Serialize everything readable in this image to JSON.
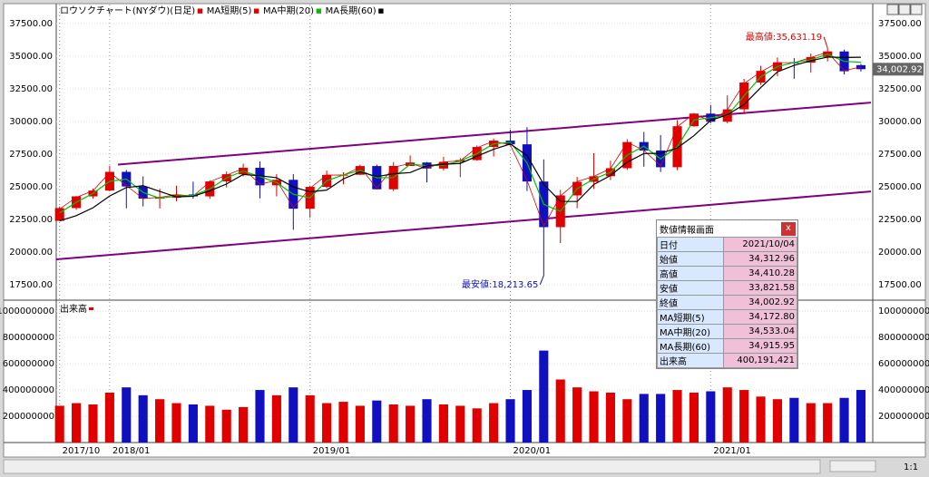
{
  "chart_data": {
    "type": "candlestick",
    "title": "ロウソクチャート(NYダウ)(日足)",
    "up_color": "#e00000",
    "down_color": "#1010c0",
    "categories": [
      "2017/10",
      null,
      null,
      "2018/01",
      null,
      null,
      null,
      null,
      null,
      null,
      null,
      null,
      null,
      null,
      null,
      "2019/01",
      null,
      null,
      null,
      null,
      null,
      null,
      null,
      null,
      null,
      null,
      null,
      "2020/01",
      null,
      null,
      null,
      null,
      null,
      null,
      null,
      null,
      null,
      null,
      null,
      "2021/01",
      null,
      null,
      null,
      null,
      null,
      null,
      null,
      null,
      null
    ],
    "open": [
      22400,
      23377,
      24272,
      24719,
      26149,
      25029,
      24103,
      24163,
      24416,
      24271,
      25415,
      25965,
      26458,
      25116,
      25538,
      23327,
      24999,
      25916,
      25929,
      26593,
      24815,
      26600,
      26864,
      26403,
      26917,
      27046,
      28051,
      28538,
      28256,
      25409,
      21917,
      24346,
      25383,
      25813,
      26428,
      28430,
      27782,
      26502,
      29639,
      30606,
      29983,
      30932,
      32982,
      33875,
      34529,
      34503,
      34935,
      35361,
      34312.96
    ],
    "high": [
      23500,
      24300,
      24880,
      26616,
      26300,
      25800,
      24860,
      25090,
      25400,
      25500,
      26170,
      26770,
      26950,
      25980,
      25980,
      25100,
      26240,
      26110,
      26700,
      26700,
      26900,
      27400,
      26900,
      27300,
      27200,
      28170,
      28700,
      29370,
      29570,
      27100,
      24760,
      25760,
      27580,
      27000,
      28650,
      29200,
      28960,
      30100,
      30640,
      31270,
      32000,
      33260,
      34260,
      34900,
      34850,
      35200,
      35631.19,
      35500,
      34410.28
    ],
    "low": [
      22400,
      23240,
      24100,
      24660,
      23360,
      23500,
      23340,
      23900,
      24100,
      24080,
      24960,
      25800,
      24120,
      24270,
      21713,
      22640,
      24880,
      25200,
      25900,
      24800,
      24680,
      26600,
      25340,
      26250,
      25740,
      27000,
      27320,
      28170,
      24680,
      18213.65,
      20700,
      23360,
      24840,
      25520,
      26290,
      26540,
      26140,
      26270,
      29600,
      29860,
      29860,
      30550,
      32800,
      33470,
      33270,
      33740,
      34600,
      33600,
      33821.58
    ],
    "close": [
      23377,
      24272,
      24719,
      26149,
      25029,
      24103,
      24163,
      24416,
      24271,
      25415,
      25965,
      26458,
      25116,
      25538,
      23327,
      24999,
      25916,
      25929,
      26593,
      24815,
      26600,
      26864,
      26403,
      26917,
      27046,
      28051,
      28538,
      28256,
      25409,
      21917,
      24346,
      25383,
      25813,
      26428,
      28430,
      27782,
      26502,
      29639,
      30606,
      29983,
      30932,
      32982,
      33875,
      34529,
      34503,
      34935,
      35361,
      33844,
      34002.92
    ],
    "series": [
      {
        "name": "MA短期(5)",
        "color": "#e00000",
        "values": [
          23300,
          24200,
          24700,
          26100,
          25100,
          24100,
          24200,
          24400,
          24300,
          25400,
          25900,
          26400,
          25200,
          25500,
          23400,
          24900,
          25900,
          25900,
          26500,
          24900,
          26500,
          26800,
          26400,
          26900,
          27000,
          28000,
          28500,
          28200,
          25500,
          22000,
          24300,
          25400,
          25800,
          26400,
          28400,
          27800,
          26600,
          29600,
          30600,
          30000,
          30900,
          32900,
          33800,
          34500,
          34500,
          34900,
          35300,
          33900,
          34172.8
        ]
      },
      {
        "name": "MA中期(20)",
        "color": "#00c000",
        "values": [
          23000,
          23820,
          24500,
          25430,
          25590,
          24570,
          24130,
          24290,
          24340,
          24840,
          25690,
          26210,
          25790,
          25330,
          24430,
          24160,
          25460,
          25920,
          26260,
          25700,
          25710,
          26730,
          26630,
          26660,
          26980,
          27550,
          28290,
          28400,
          26830,
          23660,
          23130,
          24860,
          25600,
          26120,
          27430,
          28110,
          27140,
          28070,
          30120,
          30290,
          30460,
          31960,
          33430,
          34200,
          34520,
          34720,
          35150,
          34600,
          34533.04
        ]
      },
      {
        "name": "MA長期(60)",
        "color": "#000000",
        "values": [
          22400,
          22800,
          23400,
          24300,
          24950,
          25090,
          24650,
          24230,
          24280,
          24700,
          25220,
          25950,
          25850,
          25700,
          24990,
          24620,
          24750,
          25610,
          26150,
          25780,
          26000,
          26090,
          26620,
          26730,
          26790,
          27340,
          27880,
          28280,
          27400,
          25190,
          23890,
          23880,
          25180,
          25870,
          26890,
          27550,
          27570,
          27970,
          28920,
          30080,
          30510,
          31300,
          32600,
          33800,
          34300,
          34650,
          34930,
          34900,
          34915.95
        ]
      }
    ],
    "xlim": [
      -0.2,
      48.6
    ],
    "ylim": [
      16400,
      38950
    ],
    "yticks": [
      {
        "value": 17500,
        "label": "17500.00"
      },
      {
        "value": 20000,
        "label": "20000.00"
      },
      {
        "value": 22500,
        "label": "22500.00"
      },
      {
        "value": 25000,
        "label": "25000.00"
      },
      {
        "value": 27500,
        "label": "27500.00"
      },
      {
        "value": 30000,
        "label": "30000.00"
      },
      {
        "value": 32500,
        "label": "32500.00"
      },
      {
        "value": 35000,
        "label": "35000.00"
      },
      {
        "value": 37500,
        "label": "37500.00"
      }
    ],
    "trend_lines": [
      {
        "color": "#800080",
        "x": [
          3.5,
          48.6
        ],
        "y": [
          26700,
          31450
        ]
      },
      {
        "color": "#800080",
        "x": [
          -0.2,
          48.6
        ],
        "y": [
          19450,
          24650
        ]
      }
    ],
    "annotations": [
      {
        "text": "最高値:35,631.19",
        "x": 46,
        "y": 35631.19,
        "color": "#e00000"
      },
      {
        "text": "最安値:18,213.65",
        "x": 29,
        "y": 18213.65,
        "color": "#1010c0"
      }
    ],
    "last_label": "34,002.92",
    "volume": {
      "title": "出来高",
      "values": [
        280000000,
        300000000,
        290000000,
        380000000,
        420000000,
        360000000,
        330000000,
        300000000,
        290000000,
        280000000,
        250000000,
        270000000,
        400000000,
        360000000,
        420000000,
        360000000,
        300000000,
        310000000,
        280000000,
        320000000,
        290000000,
        280000000,
        330000000,
        290000000,
        280000000,
        260000000,
        300000000,
        330000000,
        400000000,
        700000000,
        480000000,
        420000000,
        390000000,
        380000000,
        330000000,
        370000000,
        370000000,
        400000000,
        380000000,
        390000000,
        420000000,
        400000000,
        350000000,
        330000000,
        340000000,
        300000000,
        300000000,
        340000000,
        400191421
      ],
      "ylim": [
        0,
        1070000000
      ],
      "yticks": [
        200000000,
        400000000,
        600000000,
        800000000,
        1000000000
      ]
    },
    "info_panel": {
      "title": "数値情報画面",
      "close": "x",
      "rows": [
        [
          "日付",
          "2021/10/04"
        ],
        [
          "始値",
          "34,312.96"
        ],
        [
          "高値",
          "34,410.28"
        ],
        [
          "安値",
          "33,821.58"
        ],
        [
          "終値",
          "34,002.92"
        ],
        [
          "MA短期(5)",
          "34,172.80"
        ],
        [
          "MA中期(20)",
          "34,533.04"
        ],
        [
          "MA長期(60)",
          "34,915.95"
        ],
        [
          "出来高",
          "400,191,421"
        ]
      ]
    },
    "zoom_label": "1:1"
  }
}
